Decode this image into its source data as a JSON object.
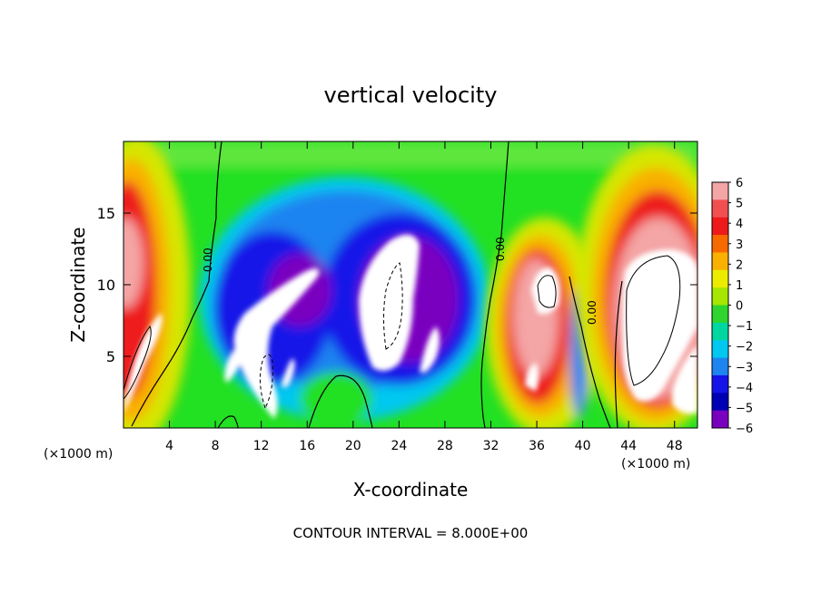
{
  "chart_data": {
    "type": "heatmap",
    "title": "vertical velocity",
    "xlabel": "X-coordinate",
    "ylabel": "Z-coordinate",
    "x_unit_label_left": "(×1000 m)",
    "x_unit_label_right": "(×1000 m)",
    "footer": "CONTOUR INTERVAL = 8.000E+00",
    "xlim": [
      0,
      50
    ],
    "ylim": [
      0,
      20
    ],
    "x_ticks": [
      4,
      8,
      12,
      16,
      20,
      24,
      28,
      32,
      36,
      40,
      44,
      48
    ],
    "x_tick_labels": [
      "4",
      "8",
      "12",
      "16",
      "20",
      "24",
      "28",
      "32",
      "36",
      "40",
      "44",
      "48"
    ],
    "y_ticks": [
      5,
      10,
      15
    ],
    "y_tick_labels": [
      "5",
      "10",
      "15"
    ],
    "colorbar": {
      "levels": [
        6,
        5,
        4,
        3,
        2,
        1,
        0,
        -1,
        -2,
        -3,
        -4,
        -5,
        -6
      ],
      "labels": [
        "6",
        "5",
        "4",
        "3",
        "2",
        "1",
        "0",
        "−1",
        "−2",
        "−3",
        "−4",
        "−5",
        "−6"
      ],
      "colors": [
        "#f4a5a5",
        "#f25050",
        "#ee1a1a",
        "#f76a00",
        "#f9b000",
        "#ecec00",
        "#a6e600",
        "#2fd42f",
        "#00d6a0",
        "#00c8f0",
        "#1e84f0",
        "#1414e8",
        "#0000b4",
        "#7a00c0"
      ]
    },
    "contour_interval": 8,
    "contour_labels": [
      "0.00",
      "0.00",
      "0.00"
    ],
    "background_color": "#22e022",
    "positive_color": "#ee1a1a",
    "negative_color": "#1414e8",
    "features": [
      {
        "sign": "updraft",
        "x": 1.5,
        "z": 9.5,
        "strength": 6
      },
      {
        "sign": "downdraft",
        "x": 12.5,
        "z": 7.0,
        "strength": -6
      },
      {
        "sign": "downdraft",
        "x": 24.5,
        "z": 9.5,
        "strength": -6
      },
      {
        "sign": "updraft",
        "x": 36.5,
        "z": 8.5,
        "strength": 6
      },
      {
        "sign": "updraft",
        "x": 47.0,
        "z": 10.0,
        "strength": 6
      }
    ]
  }
}
